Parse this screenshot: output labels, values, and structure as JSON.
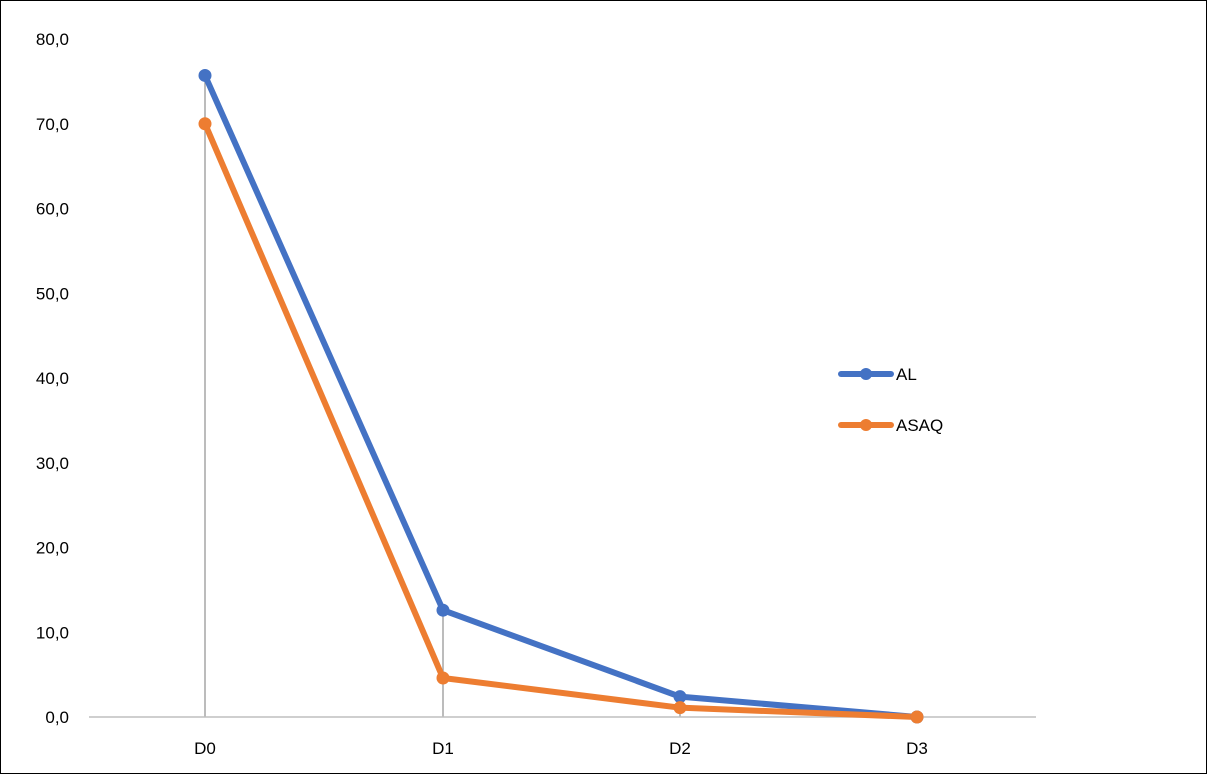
{
  "chart_data": {
    "type": "line",
    "title": "",
    "xlabel": "",
    "ylabel": "",
    "categories": [
      "D0",
      "D1",
      "D2",
      "D3"
    ],
    "ylim": [
      0,
      80
    ],
    "yticks": [
      0,
      10,
      20,
      30,
      40,
      50,
      60,
      70,
      80
    ],
    "ytick_labels": [
      "0,0",
      "10,0",
      "20,0",
      "30,0",
      "40,0",
      "50,0",
      "60,0",
      "70,0",
      "80,0"
    ],
    "grid": false,
    "drop_lines": true,
    "legend_position": "right",
    "series": [
      {
        "name": "AL",
        "color": "#4472C4",
        "values": [
          75.7,
          12.6,
          2.4,
          0.0
        ]
      },
      {
        "name": "ASAQ",
        "color": "#ED7D31",
        "values": [
          70.0,
          4.6,
          1.1,
          0.0
        ]
      }
    ],
    "axis_color": "#BFBFBF",
    "drop_line_color": "#A6A6A6"
  }
}
